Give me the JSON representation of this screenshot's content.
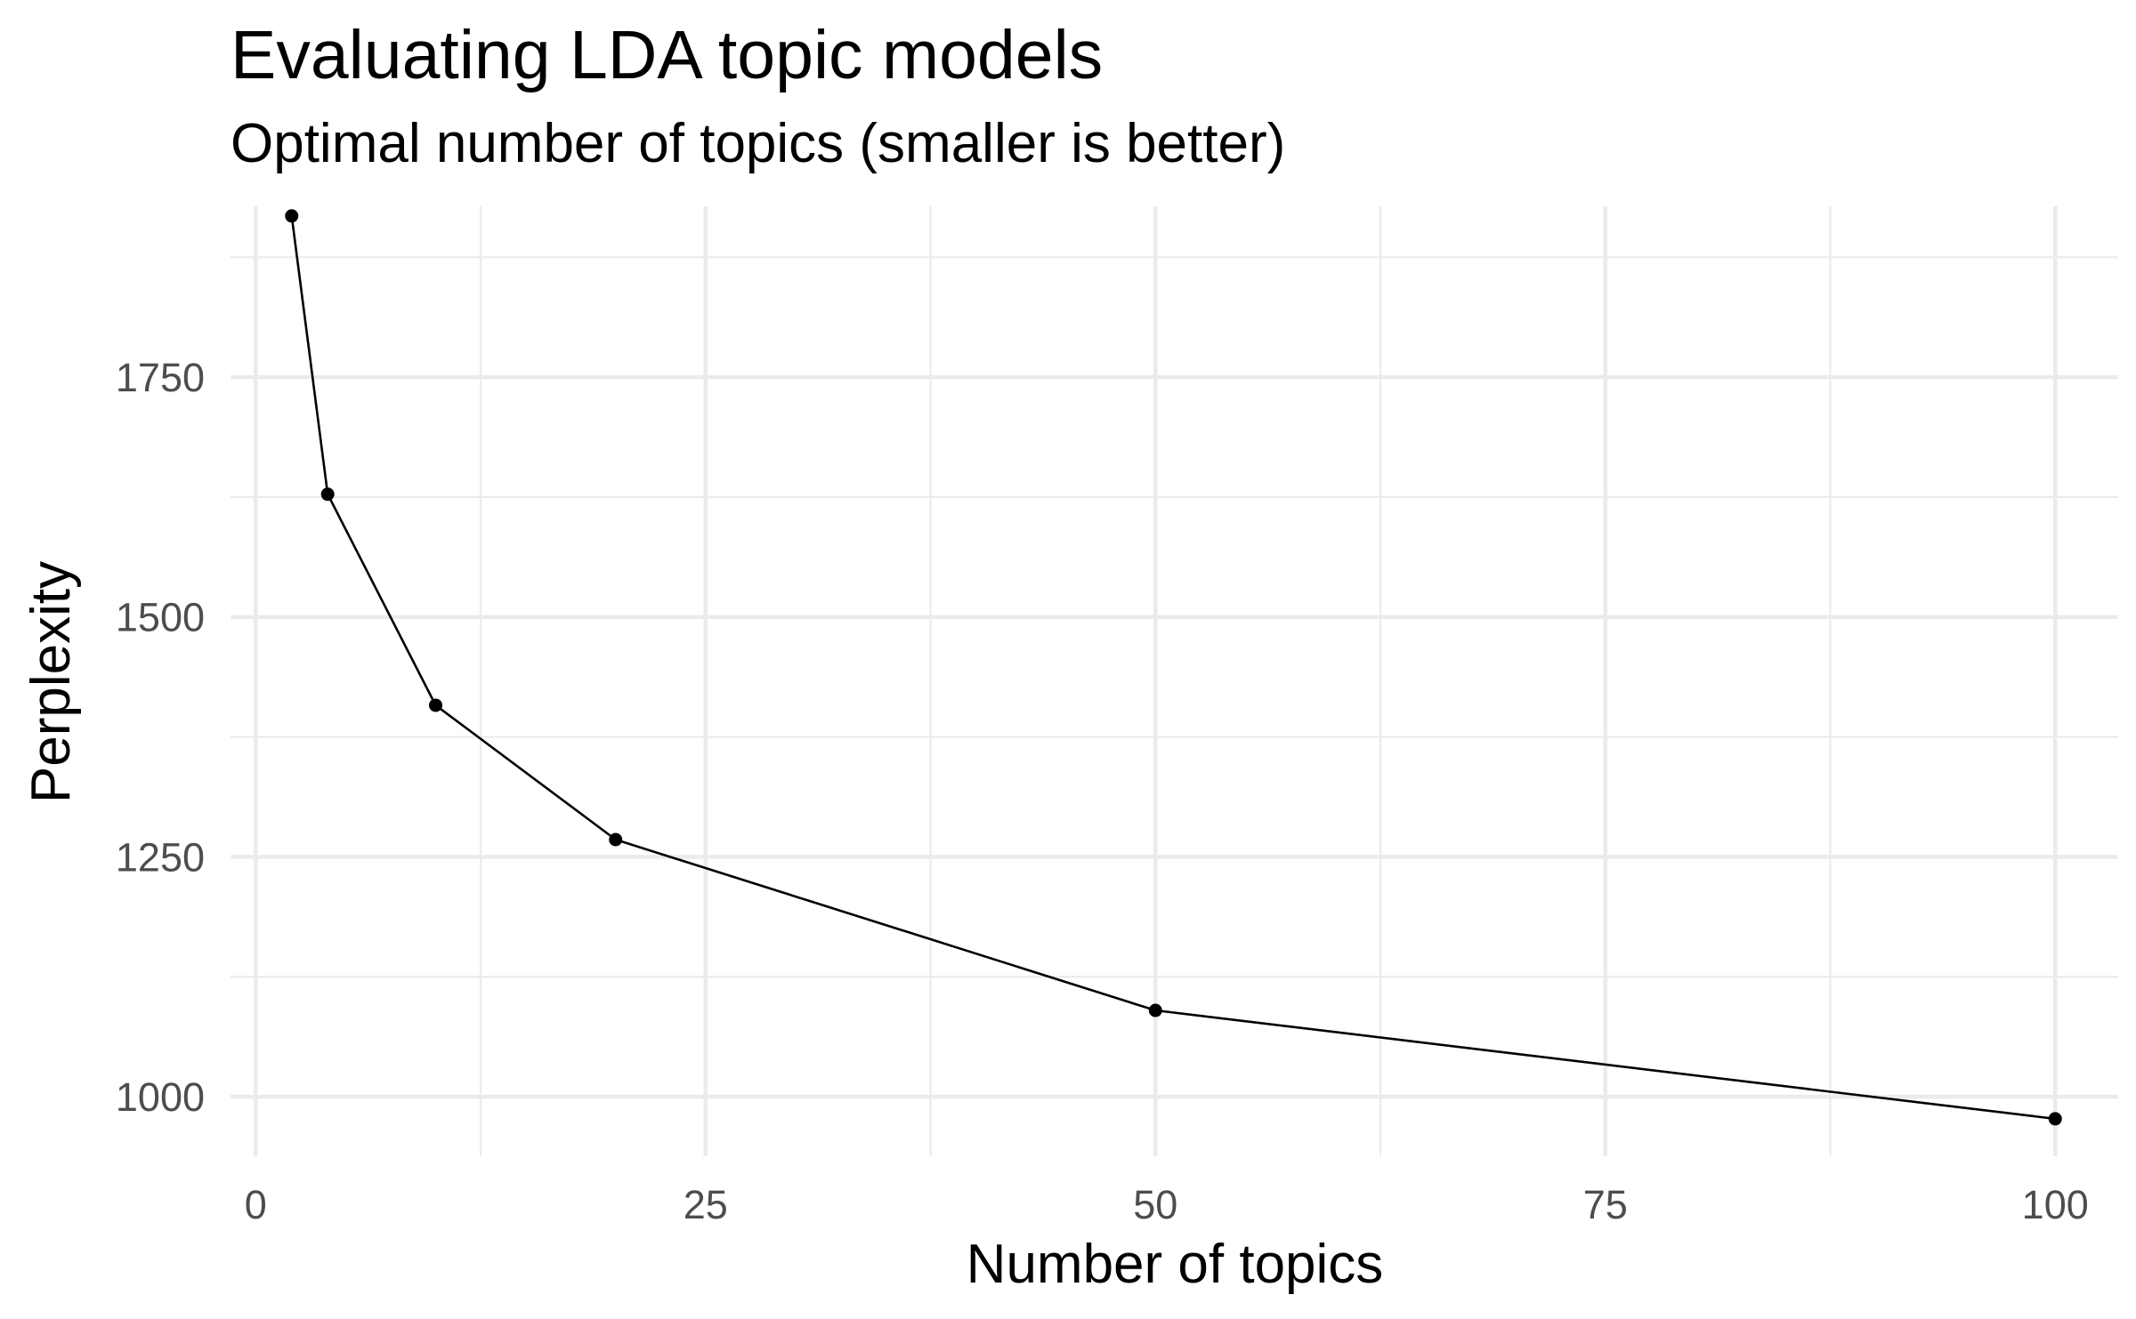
{
  "chart_data": {
    "type": "line",
    "title": "Evaluating LDA topic models",
    "subtitle": "Optimal number of topics (smaller is better)",
    "xlabel": "Number of topics",
    "ylabel": "Perplexity",
    "xlim": [
      -1.4,
      103.5
    ],
    "ylim": [
      938,
      1928
    ],
    "x_major_ticks": [
      0,
      25,
      50,
      75,
      100
    ],
    "x_minor_ticks": [
      12.5,
      37.5,
      62.5,
      87.5
    ],
    "y_major_ticks": [
      1000,
      1250,
      1500,
      1750
    ],
    "y_minor_ticks": [
      1125,
      1375,
      1625,
      1875
    ],
    "x_tick_labels": [
      "0",
      "25",
      "50",
      "75",
      "100"
    ],
    "y_tick_labels": [
      "1000",
      "1250",
      "1500",
      "1750"
    ],
    "grid": true,
    "legend": "none",
    "series": [
      {
        "x": [
          2,
          4,
          10,
          20,
          50,
          100
        ],
        "y": [
          1918,
          1628,
          1408,
          1268,
          1090,
          977
        ]
      }
    ],
    "colors": {
      "line": "#000000",
      "grid": "#ebebeb",
      "tick_text": "#4d4d4d"
    }
  }
}
